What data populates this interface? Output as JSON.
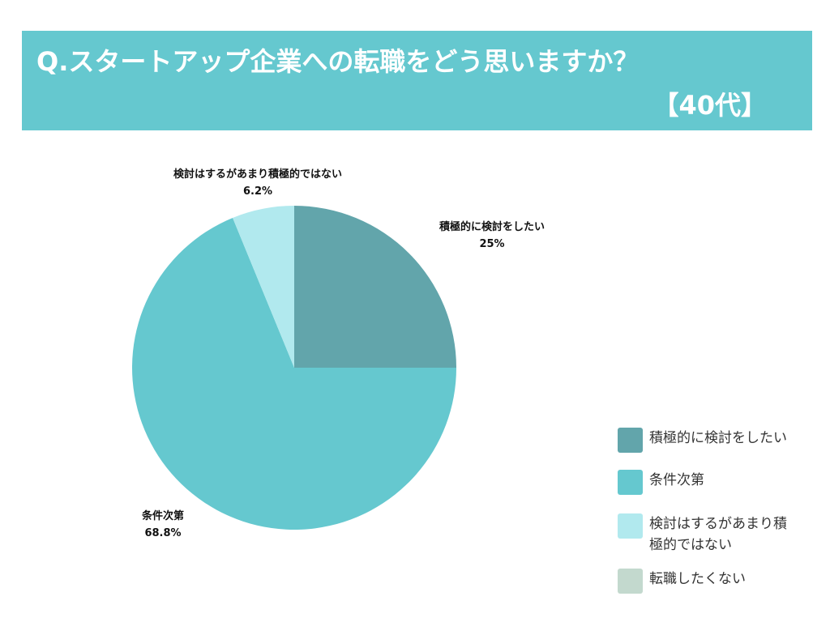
{
  "header": {
    "title_line1": "Q.スタートアップ企業への転職をどう思いますか？",
    "title_line2": "【40代】"
  },
  "colors": {
    "header_bg": "#65c8cf",
    "series": [
      "#62a5ab",
      "#65c8cf",
      "#b1e9ee",
      "#c3d9ce"
    ]
  },
  "chart_data": {
    "type": "pie",
    "start_angle": "12 o'clock, clockwise",
    "slices": [
      {
        "name": "積極的に検討をしたい",
        "value": 25,
        "label": "25%",
        "chart_label": "積極的に検討をしたい"
      },
      {
        "name": "条件次第",
        "value": 68.8,
        "label": "68.8%",
        "chart_label": "条件次第"
      },
      {
        "name": "検討はするがあまり積極的ではない",
        "value": 6.2,
        "label": "6.2%",
        "chart_label": "検討はするがあまり積極的ではない"
      },
      {
        "name": "転職したくない",
        "value": 0,
        "label": "",
        "chart_label": ""
      }
    ],
    "legend_position": "bottom-right"
  },
  "legend": {
    "items": [
      {
        "label": "積極的に検討をしたい"
      },
      {
        "label": "条件次第"
      },
      {
        "label": "検討はするがあまり積極的ではない"
      },
      {
        "label": "転職したくない"
      }
    ]
  }
}
